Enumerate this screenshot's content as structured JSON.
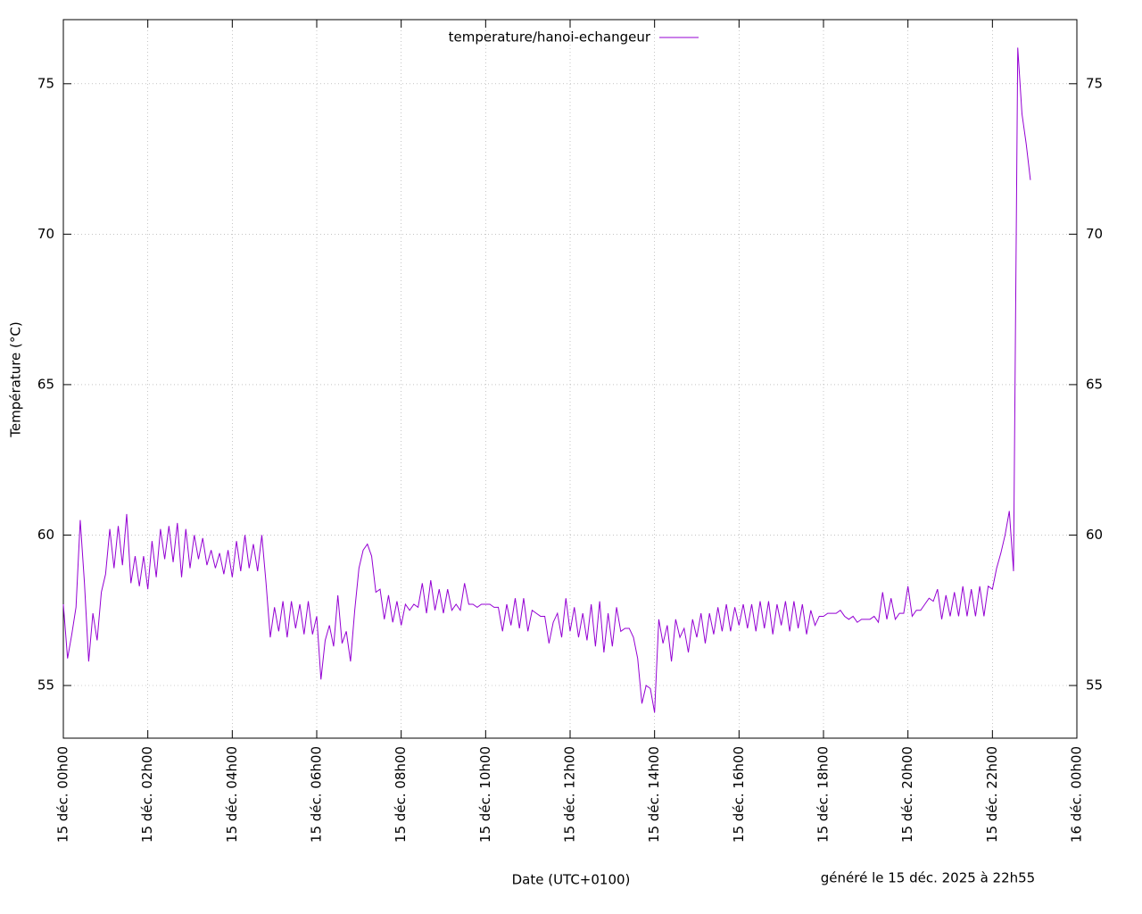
{
  "chart_data": {
    "type": "line",
    "xlabel": "Date (UTC+0100)",
    "ylabel": "Température (°C)",
    "annotation": "généré le 15 déc. 2025 à 22h55",
    "grid": true,
    "legend": "top",
    "xlim": [
      0,
      24
    ],
    "xticks": [
      {
        "value": 0,
        "label": "15 déc. 00h00"
      },
      {
        "value": 2,
        "label": "15 déc. 02h00"
      },
      {
        "value": 4,
        "label": "15 déc. 04h00"
      },
      {
        "value": 6,
        "label": "15 déc. 06h00"
      },
      {
        "value": 8,
        "label": "15 déc. 08h00"
      },
      {
        "value": 10,
        "label": "15 déc. 10h00"
      },
      {
        "value": 12,
        "label": "15 déc. 12h00"
      },
      {
        "value": 14,
        "label": "15 déc. 14h00"
      },
      {
        "value": 16,
        "label": "15 déc. 16h00"
      },
      {
        "value": 18,
        "label": "15 déc. 18h00"
      },
      {
        "value": 20,
        "label": "15 déc. 20h00"
      },
      {
        "value": 22,
        "label": "15 déc. 22h00"
      },
      {
        "value": 24,
        "label": "16 déc. 00h00"
      }
    ],
    "ylim": [
      53.25,
      77.13
    ],
    "yticks": [
      55,
      60,
      65,
      70,
      75
    ],
    "x": [
      0,
      0.1,
      0.2,
      0.3,
      0.4,
      0.5,
      0.6,
      0.7,
      0.8,
      0.9,
      1,
      1.1,
      1.2,
      1.3,
      1.4,
      1.5,
      1.6,
      1.7,
      1.8,
      1.9,
      2,
      2.1,
      2.2,
      2.3,
      2.4,
      2.5,
      2.6,
      2.7,
      2.8,
      2.9,
      3,
      3.1,
      3.2,
      3.3,
      3.4,
      3.5,
      3.6,
      3.7,
      3.8,
      3.9,
      4,
      4.1,
      4.2,
      4.3,
      4.4,
      4.5,
      4.6,
      4.7,
      4.8,
      4.9,
      5,
      5.1,
      5.2,
      5.3,
      5.4,
      5.5,
      5.6,
      5.7,
      5.8,
      5.9,
      6,
      6.1,
      6.2,
      6.3,
      6.4,
      6.5,
      6.6,
      6.7,
      6.8,
      6.9,
      7,
      7.1,
      7.2,
      7.3,
      7.4,
      7.5,
      7.6,
      7.7,
      7.8,
      7.9,
      8,
      8.1,
      8.2,
      8.3,
      8.4,
      8.5,
      8.6,
      8.7,
      8.8,
      8.9,
      9,
      9.1,
      9.2,
      9.3,
      9.4,
      9.5,
      9.6,
      9.7,
      9.8,
      9.9,
      10,
      10.1,
      10.2,
      10.3,
      10.4,
      10.5,
      10.6,
      10.7,
      10.8,
      10.9,
      11,
      11.1,
      11.2,
      11.3,
      11.4,
      11.5,
      11.6,
      11.7,
      11.8,
      11.9,
      12,
      12.1,
      12.2,
      12.3,
      12.4,
      12.5,
      12.6,
      12.7,
      12.8,
      12.9,
      13,
      13.1,
      13.2,
      13.3,
      13.4,
      13.5,
      13.6,
      13.7,
      13.8,
      13.9,
      14,
      14.1,
      14.2,
      14.3,
      14.4,
      14.5,
      14.6,
      14.7,
      14.8,
      14.9,
      15,
      15.1,
      15.2,
      15.3,
      15.4,
      15.5,
      15.6,
      15.7,
      15.8,
      15.9,
      16,
      16.1,
      16.2,
      16.3,
      16.4,
      16.5,
      16.6,
      16.7,
      16.8,
      16.9,
      17,
      17.1,
      17.2,
      17.3,
      17.4,
      17.5,
      17.6,
      17.7,
      17.8,
      17.9,
      18,
      18.1,
      18.2,
      18.3,
      18.4,
      18.5,
      18.6,
      18.7,
      18.8,
      18.9,
      19,
      19.1,
      19.2,
      19.3,
      19.4,
      19.5,
      19.6,
      19.7,
      19.8,
      19.9,
      20,
      20.1,
      20.2,
      20.3,
      20.4,
      20.5,
      20.6,
      20.7,
      20.8,
      20.9,
      21,
      21.1,
      21.2,
      21.3,
      21.4,
      21.5,
      21.6,
      21.7,
      21.8,
      21.9,
      22,
      22.1,
      22.2,
      22.3,
      22.4,
      22.5,
      22.6,
      22.7,
      22.8,
      22.9
    ],
    "series": [
      {
        "name": "temperature/hanoi-echangeur",
        "color": "#9400d3",
        "values": [
          57.7,
          55.9,
          56.7,
          57.6,
          60.5,
          58.4,
          55.8,
          57.4,
          56.5,
          58.1,
          58.7,
          60.2,
          58.9,
          60.3,
          59.0,
          60.7,
          58.4,
          59.3,
          58.3,
          59.3,
          58.2,
          59.8,
          58.6,
          60.2,
          59.2,
          60.3,
          59.1,
          60.4,
          58.6,
          60.2,
          58.9,
          60.0,
          59.2,
          59.9,
          59.0,
          59.5,
          58.9,
          59.4,
          58.7,
          59.5,
          58.6,
          59.8,
          58.8,
          60.0,
          58.9,
          59.7,
          58.8,
          60.0,
          58.4,
          56.6,
          57.6,
          56.8,
          57.8,
          56.6,
          57.8,
          56.9,
          57.7,
          56.7,
          57.8,
          56.7,
          57.3,
          55.2,
          56.5,
          57.0,
          56.3,
          58.0,
          56.4,
          56.8,
          55.8,
          57.5,
          58.9,
          59.5,
          59.7,
          59.3,
          58.1,
          58.2,
          57.2,
          58.0,
          57.1,
          57.8,
          57.0,
          57.7,
          57.5,
          57.7,
          57.6,
          58.4,
          57.4,
          58.5,
          57.5,
          58.2,
          57.4,
          58.2,
          57.5,
          57.7,
          57.5,
          58.4,
          57.7,
          57.7,
          57.6,
          57.7,
          57.7,
          57.7,
          57.6,
          57.6,
          56.8,
          57.7,
          57.0,
          57.9,
          56.9,
          57.9,
          56.8,
          57.5,
          57.4,
          57.3,
          57.3,
          56.4,
          57.1,
          57.4,
          56.6,
          57.9,
          56.8,
          57.6,
          56.6,
          57.4,
          56.5,
          57.7,
          56.3,
          57.8,
          56.1,
          57.4,
          56.3,
          57.6,
          56.8,
          56.9,
          56.9,
          56.6,
          55.9,
          54.4,
          55.0,
          54.9,
          54.1,
          57.2,
          56.4,
          57.0,
          55.8,
          57.2,
          56.6,
          56.9,
          56.1,
          57.2,
          56.6,
          57.4,
          56.4,
          57.4,
          56.7,
          57.6,
          56.8,
          57.7,
          56.8,
          57.6,
          57.0,
          57.7,
          56.9,
          57.7,
          56.8,
          57.8,
          56.9,
          57.8,
          56.7,
          57.7,
          57.0,
          57.8,
          56.8,
          57.8,
          56.9,
          57.7,
          56.7,
          57.5,
          57.0,
          57.3,
          57.3,
          57.4,
          57.4,
          57.4,
          57.5,
          57.3,
          57.2,
          57.3,
          57.1,
          57.2,
          57.2,
          57.2,
          57.3,
          57.1,
          58.1,
          57.2,
          57.9,
          57.2,
          57.4,
          57.4,
          58.3,
          57.3,
          57.5,
          57.5,
          57.7,
          57.9,
          57.8,
          58.2,
          57.2,
          58.0,
          57.3,
          58.1,
          57.3,
          58.3,
          57.3,
          58.2,
          57.3,
          58.3,
          57.3,
          58.3,
          58.2,
          58.9,
          59.4,
          60.0,
          60.8,
          58.8,
          76.2,
          74.0,
          73.0,
          71.8
        ]
      }
    ]
  }
}
